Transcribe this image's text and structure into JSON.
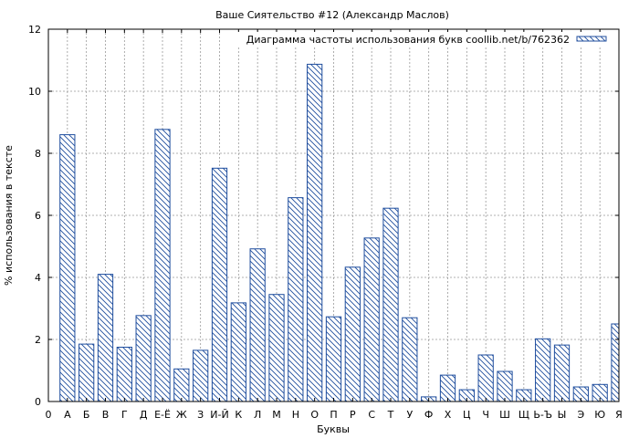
{
  "chart_data": {
    "type": "bar",
    "title": "Ваше Сиятельство #12 (Александр Маслов)",
    "xlabel": "Буквы",
    "ylabel": "% использования в тексте",
    "legend_label": "Диаграмма частоты использования букв coollib.net/b/762362",
    "legend_position": "top-right",
    "grid": true,
    "ylim": [
      0,
      12
    ],
    "yticks": [
      "0",
      "2",
      "4",
      "6",
      "8",
      "10",
      "12"
    ],
    "origin_label": "0",
    "categories": [
      "А",
      "Б",
      "В",
      "Г",
      "Д",
      "Е-Ё",
      "Ж",
      "З",
      "И-Й",
      "К",
      "Л",
      "М",
      "Н",
      "О",
      "П",
      "Р",
      "С",
      "Т",
      "У",
      "Ф",
      "Х",
      "Ц",
      "Ч",
      "Ш",
      "Щ",
      "Ь-Ъ",
      "Ы",
      "Э",
      "Ю",
      "Я"
    ],
    "values": [
      8.6,
      1.85,
      4.1,
      1.75,
      2.77,
      8.77,
      1.05,
      1.65,
      7.52,
      3.18,
      4.92,
      3.45,
      6.57,
      10.87,
      2.73,
      4.33,
      5.27,
      6.23,
      2.7,
      0.15,
      0.85,
      0.38,
      1.5,
      0.97,
      0.38,
      2.02,
      1.82,
      0.47,
      0.55,
      2.5
    ],
    "colors": {
      "bar_stroke": "#1f4e9e",
      "hatch": "#1f4e9e",
      "grid": "#999999"
    }
  }
}
